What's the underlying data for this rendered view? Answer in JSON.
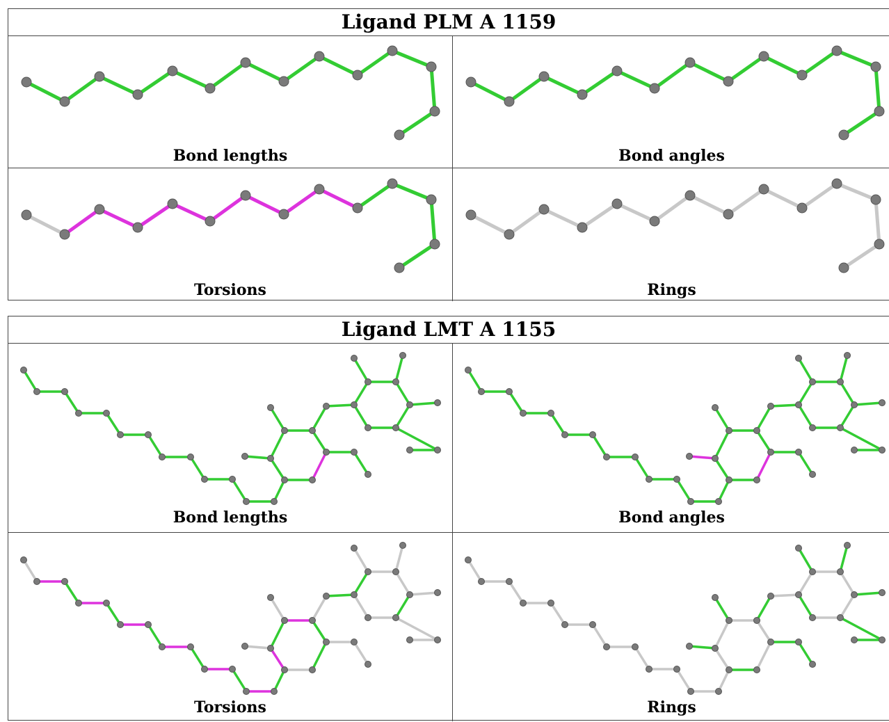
{
  "colors": {
    "ok": "#33cc33",
    "outlier": "#dd33dd",
    "unscored": "#c8c8c8",
    "atom": "#7a7a7a",
    "atom_dark": "#555555"
  },
  "panels": [
    {
      "title": "Ligand PLM A 1159",
      "cells": [
        {
          "label": "Bond lengths",
          "bonds": "ggggggggggggggg"
        },
        {
          "label": "Bond angles",
          "bonds": "ggggggggggggggg"
        },
        {
          "label": "Torsions",
          "bonds": "wmmmmmmmmgggggw"
        },
        {
          "label": "Rings",
          "bonds": "wwwwwwwwwwwwwww"
        }
      ]
    },
    {
      "title": "Ligand LMT A 1155",
      "cells": [
        {
          "label": "Bond lengths",
          "bonds": "gggggggggggggggggmgggggggggggggggggggggggggg"
        },
        {
          "label": "Bond angles",
          "bonds": "gggggggggggggggggmgmgggggggggggggggggggggggg"
        },
        {
          "label": "Torsions",
          "bonds": "wmgmgmgmgmgmgmgmggwwwwwwggwwgwwwwwwwwwwmwwww"
        },
        {
          "label": "Rings",
          "bonds": "wwwwwwwwwwwwwwwwwwggggggwwwwwwggggggwwwwwwww"
        }
      ]
    }
  ]
}
